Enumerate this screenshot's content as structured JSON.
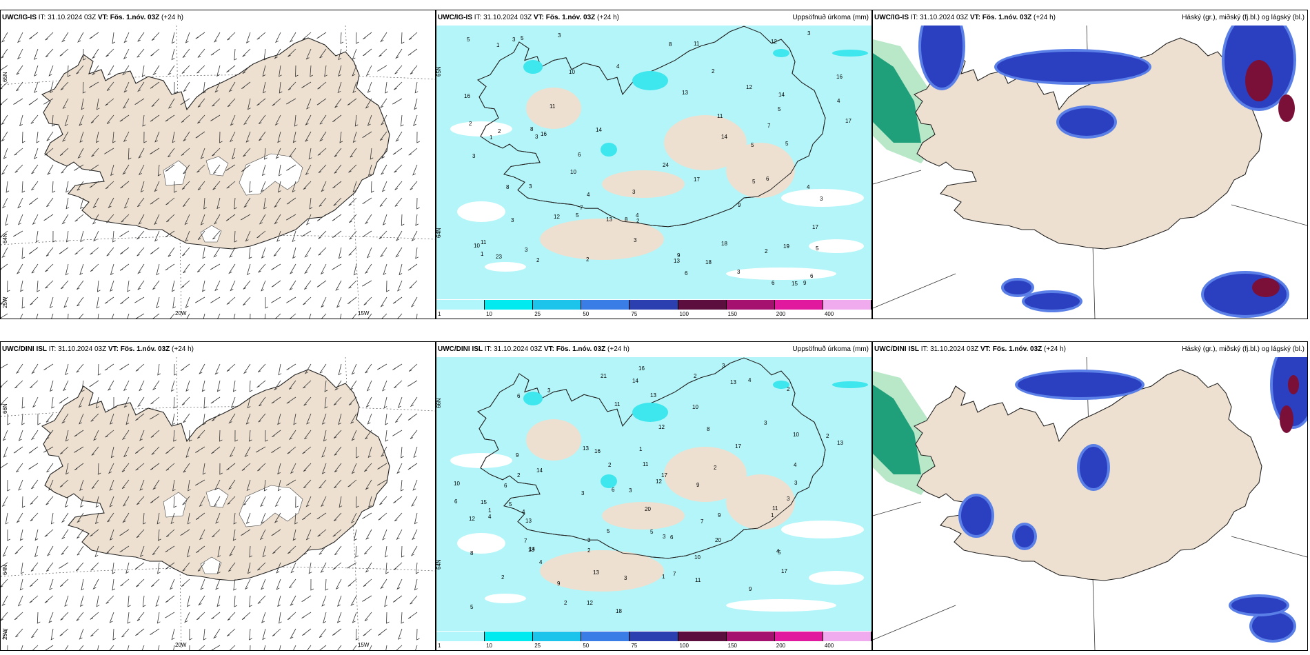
{
  "rows": [
    {
      "model": "UWC/IG-IS",
      "it_label": "IT:",
      "it_value": "31.10.2024 03Z",
      "vt_label": "VT:",
      "vt_value": "Fös. 1.nóv. 03Z",
      "lead": "(+24 h)"
    },
    {
      "model": "UWC/DINI ISL",
      "it_label": "IT:",
      "it_value": "31.10.2024 03Z",
      "vt_label": "VT:",
      "vt_value": "Fös. 1.nóv. 03Z",
      "lead": "(+24 h)"
    }
  ],
  "precip_title": "Uppsöfnuð úrkoma (mm)",
  "cloud_title": "Háský (gr.), miðský (fj.bl.) og lágský (bl.)",
  "lat_labels": [
    "65N",
    "64N",
    "25W",
    "66N",
    "64N",
    "25W"
  ],
  "lon_labels": [
    "20W",
    "15W"
  ],
  "precip_lat_labels": [
    "65N",
    "64N"
  ],
  "legend": {
    "labels": [
      "1",
      "10",
      "25",
      "50",
      "75",
      "100",
      "150",
      "200",
      "400"
    ],
    "colors": [
      "#b0f6fa",
      "#00eaf0",
      "#1cc4ec",
      "#3a7de6",
      "#2c3fb0",
      "#5c0f3e",
      "#a5116e",
      "#e0199e",
      "#f0aaee"
    ]
  },
  "colors": {
    "land": "#ede0d0",
    "coast": "#222222",
    "precip_light": "#b3f5f8",
    "precip_mid": "#3ee6ee",
    "cloud_high": "#2b3fc1",
    "cloud_high_edge": "#5a7fe6",
    "cloud_mid": "#1fa07a",
    "cloud_mid_light": "#b8e8c8",
    "cloud_low": "#7a1038"
  },
  "precip_numbers_top": [
    "3",
    "3",
    "3",
    "6",
    "9",
    "10",
    "8",
    "10",
    "5",
    "5",
    "5",
    "8",
    "5",
    "6",
    "6",
    "18",
    "24",
    "17",
    "16",
    "14",
    "15",
    "16",
    "18",
    "12",
    "19",
    "14",
    "13",
    "11",
    "14",
    "10",
    "7",
    "13",
    "23",
    "17",
    "12",
    "2",
    "2",
    "5",
    "3",
    "2",
    "3",
    "6",
    "4",
    "3",
    "2",
    "1",
    "4",
    "11",
    "3",
    "2",
    "6",
    "7",
    "17",
    "12",
    "4",
    "11",
    "2",
    "1",
    "3",
    "3",
    "11",
    "4",
    "16",
    "5",
    "2",
    "1",
    "3",
    "13",
    "9",
    "4",
    "8",
    "8",
    "3",
    "5",
    "5",
    "9",
    "3"
  ],
  "precip_numbers_bottom": [
    "2",
    "4",
    "3",
    "3",
    "3",
    "14",
    "13",
    "14",
    "10",
    "17",
    "15",
    "16",
    "20",
    "12",
    "18",
    "21",
    "17",
    "10",
    "13",
    "12",
    "11",
    "14",
    "11",
    "17",
    "11",
    "13",
    "1",
    "2",
    "12",
    "9",
    "9",
    "4",
    "7",
    "5",
    "5",
    "4",
    "2",
    "9",
    "8",
    "11",
    "13",
    "13",
    "3",
    "4",
    "6",
    "2",
    "7",
    "1",
    "3",
    "10",
    "16",
    "2",
    "1",
    "4",
    "3",
    "6",
    "13",
    "4",
    "6",
    "6",
    "5",
    "3",
    "10",
    "6",
    "5",
    "8",
    "7",
    "2",
    "3",
    "9",
    "1",
    "9",
    "2",
    "5",
    "13",
    "20",
    "12",
    "3",
    "2",
    "2",
    "3"
  ]
}
